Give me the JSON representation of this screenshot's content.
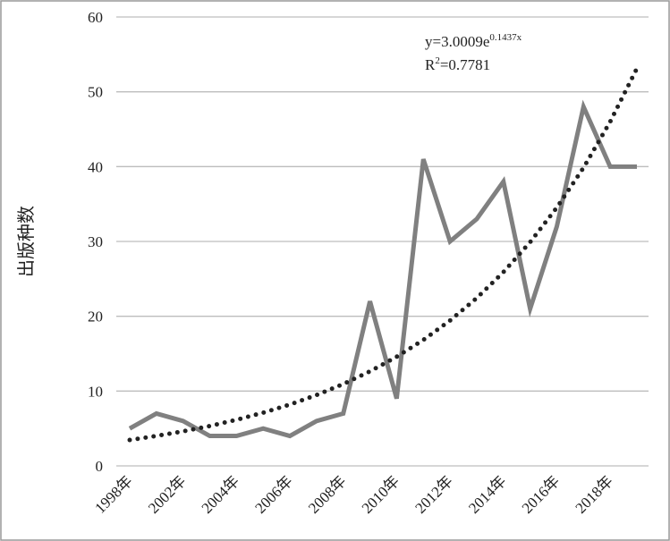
{
  "chart_data": {
    "type": "line",
    "y_label": "出版种数",
    "categories": [
      "1998年",
      null,
      "2002年",
      null,
      "2004年",
      null,
      "2006年",
      null,
      "2008年",
      null,
      "2010年",
      null,
      "2012年",
      null,
      "2014年",
      null,
      "2016年",
      null,
      "2018年",
      null
    ],
    "series": [
      {
        "color": "#808080",
        "values": [
          5,
          7,
          6,
          4,
          4,
          5,
          4,
          6,
          7,
          22,
          9,
          41,
          30,
          33,
          38,
          21,
          32,
          48,
          40,
          40
        ]
      }
    ],
    "trendline": {
      "color": "#222222",
      "values": [
        3.46,
        4.0,
        4.62,
        5.33,
        6.16,
        7.11,
        8.2,
        9.47,
        10.94,
        12.63,
        14.58,
        16.83,
        19.43,
        22.43,
        25.9,
        29.9,
        34.52,
        39.85,
        46.01,
        53.12
      ]
    },
    "equation": {
      "base": "y=3.0009e",
      "exponent": "0.1437x"
    },
    "r_squared": {
      "base": "R",
      "exponent": "2",
      "value": "=0.7781"
    },
    "ylim": [
      0,
      60
    ],
    "yticks": [
      0,
      10,
      20,
      30,
      40,
      50,
      60
    ],
    "grid": true
  }
}
